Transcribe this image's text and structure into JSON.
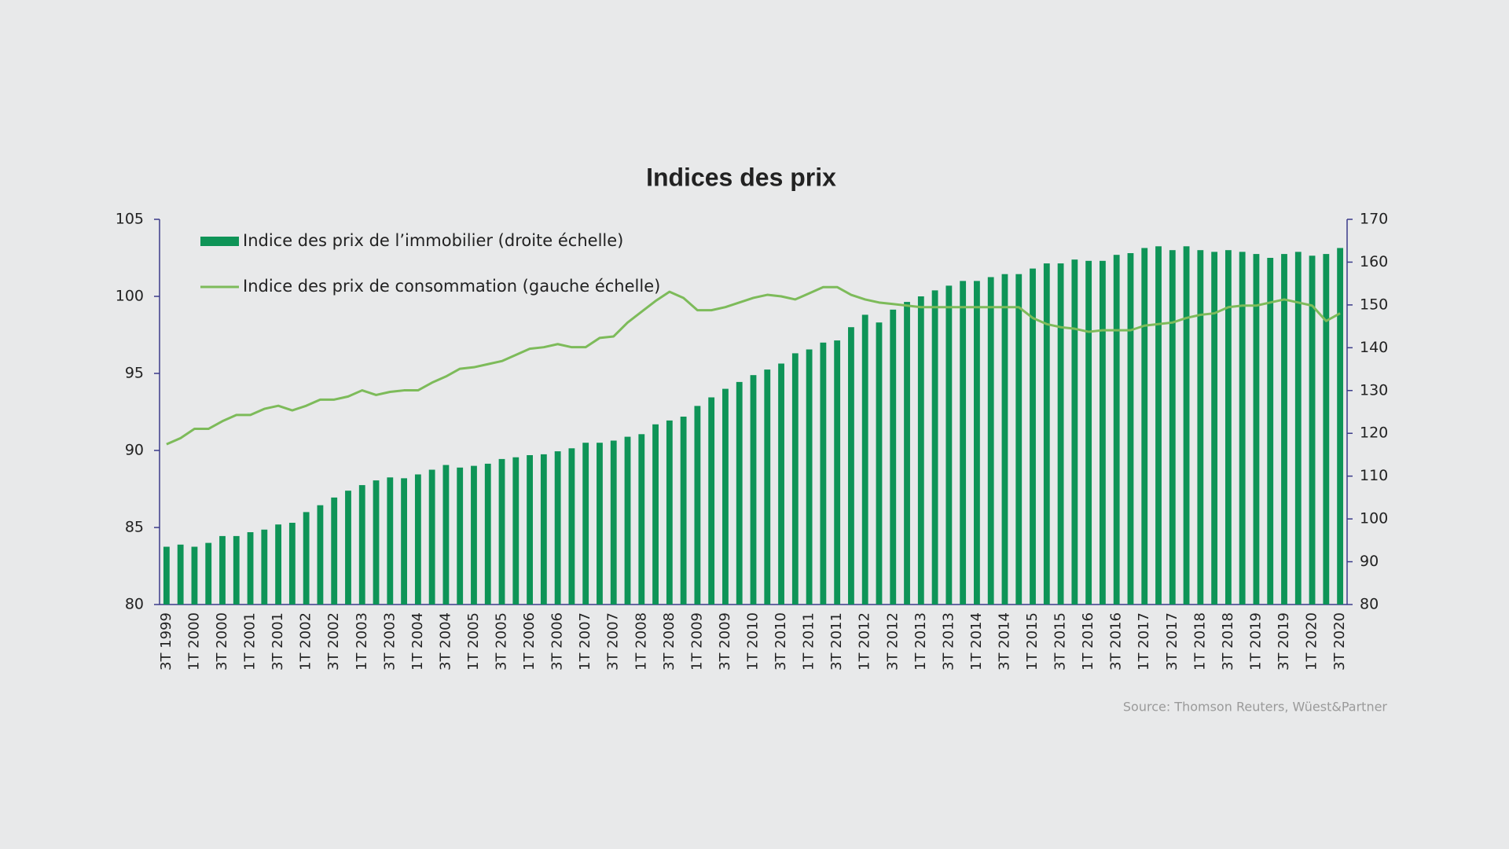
{
  "chart_data": {
    "type": "combo",
    "title": "Indices des prix",
    "source": "Source: Thomson Reuters, Wüest&Partner",
    "categories": [
      "3T 1999",
      null,
      "1T 2000",
      null,
      "3T 2000",
      null,
      "1T 2001",
      null,
      "3T 2001",
      null,
      "1T 2002",
      null,
      "3T 2002",
      null,
      "1T 2003",
      null,
      "3T 2003",
      null,
      "1T 2004",
      null,
      "3T 2004",
      null,
      "1T 2005",
      null,
      "3T 2005",
      null,
      "1T 2006",
      null,
      "3T 2006",
      null,
      "1T 2007",
      null,
      "3T 2007",
      null,
      "1T 2008",
      null,
      "3T 2008",
      null,
      "1T 2009",
      null,
      "3T 2009",
      null,
      "1T 2010",
      null,
      "3T 2010",
      null,
      "1T 2011",
      null,
      "3T 2011",
      null,
      "1T 2012",
      null,
      "3T 2012",
      null,
      "1T 2013",
      null,
      "3T 2013",
      null,
      "1T 2014",
      null,
      "3T 2014",
      null,
      "1T 2015",
      null,
      "3T 2015",
      null,
      "1T 2016",
      null,
      "3T 2016",
      null,
      "1T 2017",
      null,
      "3T 2017",
      null,
      "1T 2018",
      null,
      "3T 2018",
      null,
      "1T 2019",
      null,
      "3T 2019",
      null,
      "1T 2020",
      null,
      "3T 2020"
    ],
    "series": [
      {
        "name": "Indice des prix de l’immobilier (droite échelle)",
        "type": "bar",
        "axis": "y2",
        "color": "#0e9457",
        "values": [
          93.5,
          94,
          93.5,
          94.4,
          96,
          96,
          96.9,
          97.5,
          98.7,
          99.1,
          101.6,
          103.2,
          105,
          106.6,
          107.9,
          109,
          109.7,
          109.5,
          110.4,
          111.5,
          112.6,
          112,
          112.4,
          112.9,
          114,
          114.4,
          114.9,
          115.1,
          115.8,
          116.5,
          117.8,
          117.8,
          118.3,
          119.2,
          119.8,
          122.1,
          123,
          123.9,
          126.4,
          128.4,
          130.4,
          132,
          133.6,
          134.9,
          136.3,
          138.7,
          139.6,
          141.2,
          141.7,
          144.8,
          147.7,
          145.9,
          148.9,
          150.7,
          152,
          153.4,
          154.5,
          155.6,
          155.6,
          156.5,
          157.2,
          157.2,
          158.5,
          159.7,
          159.7,
          160.6,
          160.3,
          160.3,
          161.7,
          162.1,
          163.3,
          163.7,
          162.8,
          163.7,
          162.8,
          162.4,
          162.8,
          162.4,
          161.9,
          161,
          161.9,
          162.4,
          161.5,
          161.9,
          163.3
        ]
      },
      {
        "name": "Indice des prix de consommation (gauche échelle)",
        "type": "line",
        "axis": "y",
        "color": "#7dbb5a",
        "values": [
          90.4,
          90.8,
          91.4,
          91.4,
          91.9,
          92.3,
          92.3,
          92.7,
          92.9,
          92.6,
          92.9,
          93.3,
          93.3,
          93.5,
          93.9,
          93.6,
          93.8,
          93.9,
          93.9,
          94.4,
          94.8,
          95.3,
          95.4,
          95.6,
          95.8,
          96.2,
          96.6,
          96.7,
          96.9,
          96.7,
          96.7,
          97.3,
          97.4,
          98.3,
          99,
          99.7,
          100.3,
          99.9,
          99.1,
          99.1,
          99.3,
          99.6,
          99.9,
          100.1,
          100,
          99.8,
          100.2,
          100.6,
          100.6,
          100.1,
          99.8,
          99.6,
          99.5,
          99.4,
          99.3,
          99.3,
          99.3,
          99.3,
          99.3,
          99.3,
          99.3,
          99.3,
          98.6,
          98.2,
          98,
          97.9,
          97.7,
          97.8,
          97.8,
          97.8,
          98.1,
          98.2,
          98.3,
          98.6,
          98.8,
          98.9,
          99.3,
          99.4,
          99.4,
          99.6,
          99.8,
          99.6,
          99.4,
          98.4,
          98.9
        ]
      }
    ],
    "ylim": [
      80,
      105
    ],
    "yticks": [
      80,
      85,
      90,
      95,
      100,
      105
    ],
    "y2lim": [
      80,
      170
    ],
    "y2ticks": [
      80,
      90,
      100,
      110,
      120,
      130,
      140,
      150,
      160,
      170
    ],
    "grid": false,
    "legend": "top-left"
  }
}
